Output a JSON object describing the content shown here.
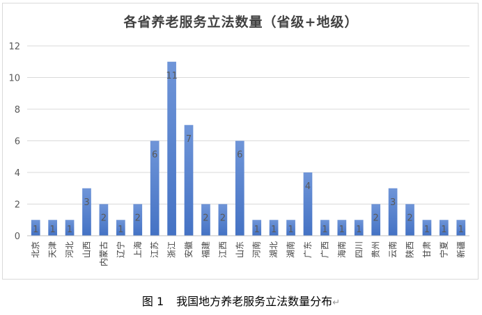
{
  "chart_data": {
    "type": "bar",
    "title": "各省养老服务立法数量（省级+地级）",
    "xlabel": "",
    "ylabel": "",
    "ylim": [
      0,
      12
    ],
    "yticks": [
      0,
      2,
      4,
      6,
      8,
      10,
      12
    ],
    "grid": true,
    "legend": "none",
    "categories": [
      "北京",
      "天津",
      "河北",
      "山西",
      "内蒙古",
      "辽宁",
      "上海",
      "江苏",
      "浙江",
      "安徽",
      "福建",
      "江西",
      "山东",
      "河南",
      "湖北",
      "湖南",
      "广东",
      "广西",
      "海南",
      "四川",
      "贵州",
      "云南",
      "陕西",
      "甘肃",
      "宁夏",
      "新疆"
    ],
    "values": [
      1,
      1,
      1,
      3,
      2,
      1,
      2,
      6,
      11,
      7,
      2,
      2,
      6,
      1,
      1,
      1,
      4,
      1,
      1,
      1,
      2,
      3,
      2,
      1,
      1,
      1
    ],
    "bar_color": "#4472c4",
    "bar_color_light": "#6f95d8"
  },
  "caption": {
    "number": "图 1",
    "text": "我国地方养老服务立法数量分布",
    "return_mark": "↵"
  }
}
